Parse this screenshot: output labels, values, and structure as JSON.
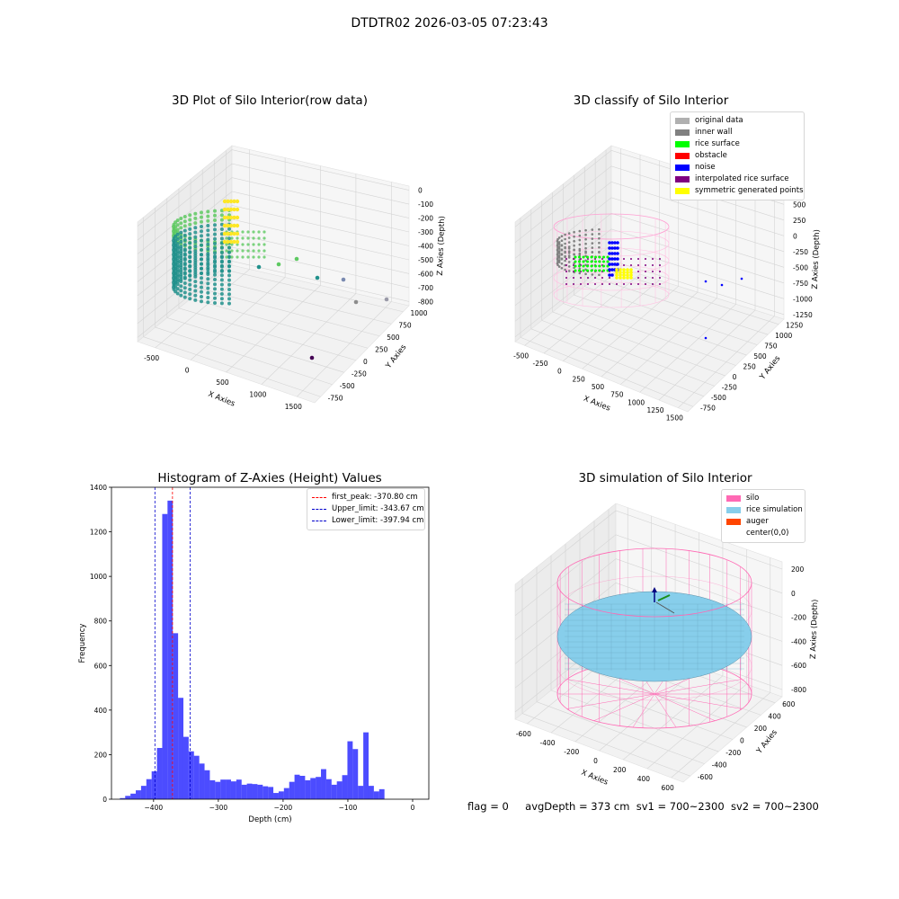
{
  "figure_title": "DTDTR02 2026-03-05 07:23:43",
  "panels": {
    "raw": {
      "title": "3D Plot of Silo Interior(row data)",
      "xlabel": "X Axies",
      "ylabel": "Y Axies",
      "zlabel": "Z Axies (Depth)",
      "x_ticks": [
        "-500",
        "0",
        "500",
        "1000",
        "1500"
      ],
      "y_ticks": [
        "-750",
        "-500",
        "-250",
        "0",
        "250",
        "500",
        "750",
        "1000"
      ],
      "z_ticks": [
        "0",
        "-100",
        "-200",
        "-300",
        "-400",
        "-500",
        "-600",
        "-700",
        "-800"
      ],
      "colormap": [
        "#440154",
        "#3b528b",
        "#21918c",
        "#5ec962",
        "#fde725"
      ]
    },
    "classify": {
      "title": "3D classify of Silo Interior",
      "xlabel": "X Axies",
      "ylabel": "Y Axies",
      "zlabel": "Z Axies (Depth)",
      "x_ticks": [
        "-500",
        "-250",
        "0",
        "250",
        "500",
        "750",
        "1000",
        "1250",
        "1500"
      ],
      "y_ticks": [
        "-750",
        "-500",
        "-250",
        "0",
        "250",
        "500",
        "750",
        "1000",
        "1250"
      ],
      "z_ticks": [
        "500",
        "250",
        "0",
        "-250",
        "-500",
        "-750",
        "-1000",
        "-1250"
      ],
      "legend": [
        {
          "label": "original data",
          "color": "#b0b0b0"
        },
        {
          "label": "inner wall",
          "color": "#808080"
        },
        {
          "label": "rice surface",
          "color": "#00ff00"
        },
        {
          "label": "obstacle",
          "color": "#ff0000"
        },
        {
          "label": "noise",
          "color": "#0000ff"
        },
        {
          "label": "interpolated rice surface",
          "color": "#800080"
        },
        {
          "label": "symmetric generated points",
          "color": "#ffff00"
        }
      ]
    },
    "simulation": {
      "title": "3D simulation of Silo Interior",
      "xlabel": "X Axies",
      "ylabel": "Y Axies",
      "zlabel": "Z Axies (Depth)",
      "x_ticks": [
        "-600",
        "-400",
        "-200",
        "0",
        "200",
        "400",
        "600"
      ],
      "y_ticks": [
        "-600",
        "-400",
        "-200",
        "0",
        "200",
        "400",
        "600"
      ],
      "z_ticks": [
        "200",
        "0",
        "-200",
        "-400",
        "-600",
        "-800"
      ],
      "legend": [
        {
          "label": "silo",
          "color": "#ff69b4"
        },
        {
          "label": "rice simulation",
          "color": "#87ceeb"
        },
        {
          "label": "auger",
          "color": "#ff4500"
        },
        {
          "label": "center(0,0)",
          "color": ""
        }
      ]
    }
  },
  "footer": {
    "flag": "flag = 0",
    "avg": "avgDepth = 373 cm",
    "sv1": "sv1 = 700~2300",
    "sv2": "sv2 = 700~2300"
  },
  "chart_data": [
    {
      "type": "bar",
      "title": "Histogram of Z-Axies (Height) Values",
      "xlabel": "Depth (cm)",
      "ylabel": "Frequency",
      "bar_color": "#0000ff",
      "xlim": [
        -465,
        25
      ],
      "ylim": [
        0,
        1400
      ],
      "x_ticks": [
        -400,
        -300,
        -200,
        -100,
        0
      ],
      "y_ticks": [
        0,
        200,
        400,
        600,
        800,
        1000,
        1200,
        1400
      ],
      "bin_start": -452,
      "bin_width": 8.17,
      "values": [
        5,
        15,
        25,
        40,
        60,
        90,
        125,
        230,
        1280,
        1340,
        745,
        455,
        280,
        215,
        195,
        160,
        130,
        85,
        78,
        88,
        88,
        80,
        88,
        65,
        70,
        68,
        65,
        58,
        55,
        28,
        35,
        50,
        78,
        110,
        105,
        85,
        95,
        100,
        135,
        90,
        65,
        80,
        108,
        260,
        225,
        60,
        300,
        60,
        35,
        45
      ],
      "lines": [
        {
          "label": "first_peak: -370.80 cm",
          "x": -370.8,
          "color": "#ff0000"
        },
        {
          "label": "Upper_limit: -343.67 cm",
          "x": -343.67,
          "color": "#0000cc"
        },
        {
          "label": "Lower_limit: -397.94 cm",
          "x": -397.94,
          "color": "#0000cc"
        }
      ]
    }
  ]
}
